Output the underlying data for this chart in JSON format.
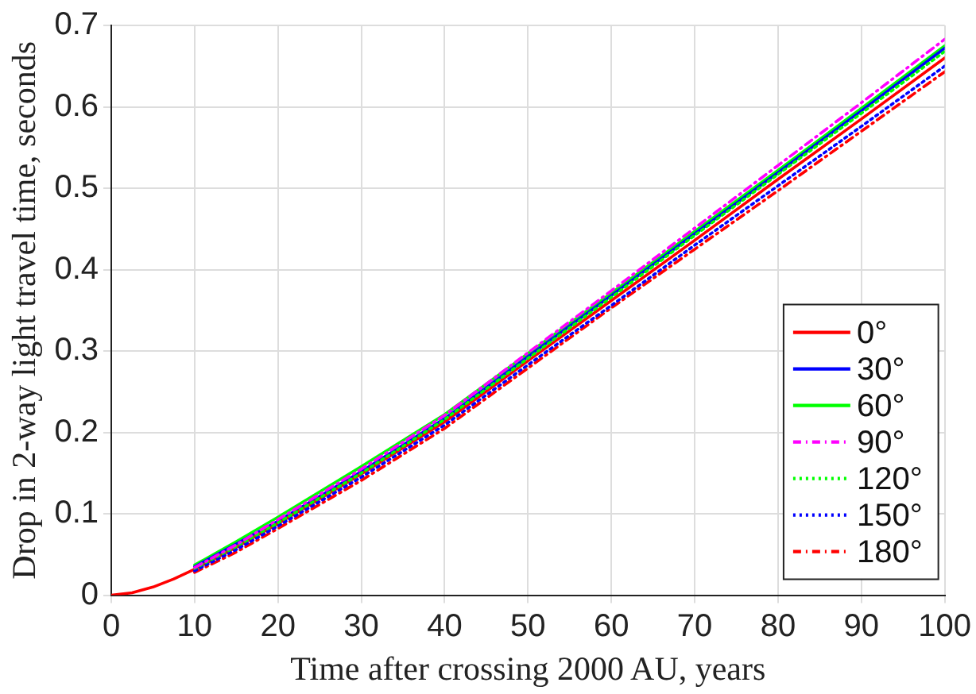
{
  "chart_data": {
    "type": "line",
    "xlabel": "Time after crossing 2000 AU, years",
    "ylabel": "Drop in 2-way light travel time, seconds",
    "x": [
      10,
      15,
      20,
      30,
      40,
      50,
      60,
      70,
      80,
      90,
      100
    ],
    "xlim": [
      0,
      100
    ],
    "xticks": [
      0,
      10,
      20,
      30,
      40,
      50,
      60,
      70,
      80,
      90,
      100
    ],
    "ylim": [
      0,
      0.7
    ],
    "yticks": [
      0,
      0.1,
      0.2,
      0.3,
      0.4,
      0.5,
      0.6,
      0.7
    ],
    "grid": true,
    "legend": "bottom right",
    "marker": "none",
    "series": [
      {
        "name": "0°",
        "color": "#ff0000",
        "line_style": "solid",
        "x": [
          0,
          2.5,
          5,
          7.5,
          10,
          15,
          20,
          30,
          40,
          50,
          60,
          70,
          80,
          90,
          100
        ],
        "values": [
          0,
          0.003,
          0.01,
          0.02,
          0.032,
          0.059,
          0.088,
          0.149,
          0.213,
          0.288,
          0.362,
          0.436,
          0.511,
          0.585,
          0.66
        ]
      },
      {
        "name": "30°",
        "color": "#0000ff",
        "line_style": "solid",
        "values": [
          0.035,
          0.063,
          0.091,
          0.152,
          0.217,
          0.293,
          0.368,
          0.444,
          0.519,
          0.595,
          0.672
        ]
      },
      {
        "name": "60°",
        "color": "#00ff00",
        "line_style": "solid",
        "values": [
          0.037,
          0.066,
          0.096,
          0.158,
          0.222,
          0.297,
          0.371,
          0.447,
          0.522,
          0.598,
          0.675
        ]
      },
      {
        "name": "90°",
        "color": "#ff00ff",
        "line_style": "dashed",
        "values": [
          0.034,
          0.062,
          0.093,
          0.155,
          0.221,
          0.298,
          0.374,
          0.451,
          0.528,
          0.605,
          0.683
        ]
      },
      {
        "name": "120°",
        "color": "#00ff00",
        "line_style": "dotted",
        "values": [
          0.033,
          0.06,
          0.089,
          0.15,
          0.216,
          0.291,
          0.366,
          0.442,
          0.517,
          0.592,
          0.668
        ]
      },
      {
        "name": "150°",
        "color": "#0000ff",
        "line_style": "dotted",
        "values": [
          0.03,
          0.056,
          0.085,
          0.145,
          0.209,
          0.283,
          0.356,
          0.43,
          0.503,
          0.576,
          0.65
        ]
      },
      {
        "name": "180°",
        "color": "#ff0000",
        "line_style": "dashed",
        "values": [
          0.028,
          0.053,
          0.082,
          0.141,
          0.205,
          0.279,
          0.353,
          0.425,
          0.497,
          0.57,
          0.643
        ]
      }
    ]
  }
}
